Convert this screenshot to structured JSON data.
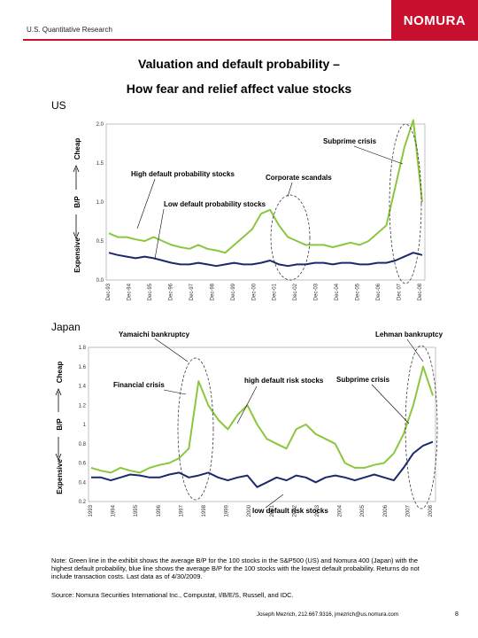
{
  "header": {
    "section": "U.S. Quantitative Research",
    "logo": "NOMURA"
  },
  "title": {
    "line1": "Valuation and default probability –",
    "line2": "How fear and relief affect value stocks"
  },
  "colors": {
    "green": "#8cc63f",
    "blue": "#1b2a6b",
    "brand": "#c8102e"
  },
  "chart_data": [
    {
      "type": "line",
      "region": "US",
      "ylim": [
        0,
        2.0
      ],
      "yticks": [
        "0.0",
        "0.5",
        "1.0",
        "1.5",
        "2.0"
      ],
      "side_labels": {
        "top": "Cheap",
        "middle": "B/P",
        "bottom": "Expensive"
      },
      "x_labels": [
        "Dec-93",
        "Dec-94",
        "Dec-95",
        "Dec-96",
        "Dec-97",
        "Dec-98",
        "Dec-99",
        "Dec-00",
        "Dec-01",
        "Dec-02",
        "Dec-03",
        "Dec-04",
        "Dec-05",
        "Dec-06",
        "Dec 07",
        "Dec-08"
      ],
      "series": [
        {
          "name": "High default probability stocks",
          "color": "green",
          "values": [
            0.6,
            0.55,
            0.55,
            0.52,
            0.5,
            0.55,
            0.5,
            0.45,
            0.42,
            0.4,
            0.45,
            0.4,
            0.38,
            0.35,
            0.45,
            0.55,
            0.65,
            0.85,
            0.9,
            0.7,
            0.55,
            0.5,
            0.45,
            0.45,
            0.45,
            0.42,
            0.45,
            0.48,
            0.45,
            0.5,
            0.6,
            0.7,
            1.2,
            1.7,
            2.05,
            1.0
          ]
        },
        {
          "name": "Low default probability stocks",
          "color": "blue",
          "values": [
            0.35,
            0.32,
            0.3,
            0.28,
            0.3,
            0.28,
            0.25,
            0.22,
            0.2,
            0.2,
            0.22,
            0.2,
            0.18,
            0.2,
            0.22,
            0.2,
            0.2,
            0.22,
            0.25,
            0.2,
            0.18,
            0.2,
            0.2,
            0.22,
            0.22,
            0.2,
            0.22,
            0.22,
            0.2,
            0.2,
            0.22,
            0.22,
            0.25,
            0.3,
            0.35,
            0.32
          ]
        }
      ],
      "annotations": [
        "Subprime crisis",
        "Corporate scandals",
        "High default probability stocks",
        "Low default probability stocks"
      ]
    },
    {
      "type": "line",
      "region": "Japan",
      "ylim": [
        0.2,
        1.8
      ],
      "yticks": [
        "0.2",
        "0.4",
        "0.6",
        "0.8",
        "1",
        "1.2",
        "1.4",
        "1.6",
        "1.8"
      ],
      "side_labels": {
        "top": "Cheap",
        "middle": "B/P",
        "bottom": "Expensive"
      },
      "x_labels": [
        "1993",
        "1994",
        "1995",
        "1996",
        "1997",
        "1998",
        "1999",
        "2000",
        "2001",
        "2002",
        "2003",
        "2004",
        "2005",
        "2006",
        "2007",
        "2008"
      ],
      "series": [
        {
          "name": "high default risk stocks",
          "color": "green",
          "values": [
            0.55,
            0.52,
            0.5,
            0.55,
            0.52,
            0.5,
            0.55,
            0.58,
            0.6,
            0.65,
            0.75,
            1.45,
            1.2,
            1.05,
            0.95,
            1.1,
            1.2,
            1.0,
            0.85,
            0.8,
            0.75,
            0.95,
            1.0,
            0.9,
            0.85,
            0.8,
            0.6,
            0.55,
            0.55,
            0.58,
            0.6,
            0.7,
            0.9,
            1.2,
            1.6,
            1.3
          ]
        },
        {
          "name": "low default risk stocks",
          "color": "blue",
          "values": [
            0.45,
            0.45,
            0.42,
            0.45,
            0.48,
            0.47,
            0.45,
            0.45,
            0.48,
            0.5,
            0.45,
            0.47,
            0.5,
            0.45,
            0.42,
            0.45,
            0.47,
            0.35,
            0.4,
            0.45,
            0.42,
            0.47,
            0.45,
            0.4,
            0.45,
            0.47,
            0.45,
            0.42,
            0.45,
            0.48,
            0.45,
            0.42,
            0.55,
            0.7,
            0.78,
            0.82
          ]
        }
      ],
      "annotations": [
        "Yamaichi bankruptcy",
        "Financial crisis",
        "high default risk stocks",
        "Lehman bankruptcy",
        "Subprime crisis",
        "low default risk stocks"
      ]
    }
  ],
  "notes": {
    "note": "Note: Green line in the exhibit shows the average B/P for the 100 stocks in the S&P500 (US) and Nomura 400 (Japan) with the highest default probability, blue line shows the average B/P for the 100 stocks with the lowest default probability. Returns do not include transaction costs. Last data as of 4/30/2009.",
    "source": "Source: Nomura Securities International Inc., Compustat, I/B/E/S, Russell, and IDC.",
    "footer": "Joseph Mezrich, 212.667.9316, jmezrich@us.nomura.com",
    "page": "8"
  }
}
